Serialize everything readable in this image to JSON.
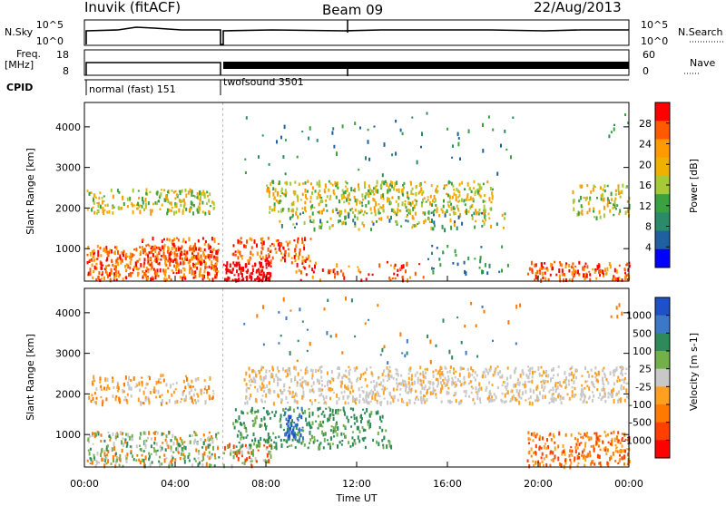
{
  "header": {
    "station": "Inuvik (fitACF)",
    "beam": "Beam 09",
    "date": "22/Aug/2013"
  },
  "panels": {
    "nsky_label": "N.Sky",
    "nsearch_label": "N.Search",
    "nsky_ticks": [
      "10^5",
      "10^0"
    ],
    "nsearch_ticks": [
      "10^5",
      "10^0"
    ],
    "freq_label_1": "Freq.",
    "freq_label_2": "[MHz]",
    "freq_ticks": [
      "18",
      "8"
    ],
    "nave_label": "Nave",
    "nave_ticks": [
      "60",
      "0"
    ],
    "cpid_label": "CPID",
    "cpid_modes": [
      "normal (fast) 151",
      "twofsound 3501"
    ]
  },
  "chart_data": [
    {
      "type": "heatmap",
      "name": "power",
      "ylabel": "Slant Range [km]",
      "y_ticks": [
        "1000",
        "2000",
        "3000",
        "4000"
      ],
      "ylim": [
        200,
        4600
      ],
      "colorbar_label": "Power [dB]",
      "colorbar_ticks": [
        "28",
        "24",
        "20",
        "16",
        "12",
        "8",
        "4"
      ],
      "colorbar_colors": [
        "#ff0000",
        "#ff5a00",
        "#ff9a00",
        "#f0b000",
        "#a6c93a",
        "#3aa040",
        "#2a8a6a",
        "#2060a0",
        "#0000ff"
      ],
      "x_ticks": [
        "00:00",
        "04:00",
        "08:00",
        "12:00",
        "16:00",
        "20:00",
        "00:00"
      ]
    },
    {
      "type": "heatmap",
      "name": "velocity",
      "ylabel": "Slant Range [km]",
      "y_ticks": [
        "1000",
        "2000",
        "3000",
        "4000"
      ],
      "ylim": [
        200,
        4600
      ],
      "colorbar_label": "Velocity [m s-1]",
      "colorbar_ticks": [
        "1000",
        "500",
        "100",
        "25",
        "-25",
        "-100",
        "-500",
        "-1000"
      ],
      "colorbar_colors": [
        "#1e50c8",
        "#3c78c8",
        "#2e8a5a",
        "#74b04a",
        "#c8c8c8",
        "#ffa020",
        "#ff7a00",
        "#ff4000",
        "#ff0000"
      ],
      "x_ticks": [
        "00:00",
        "04:00",
        "08:00",
        "12:00",
        "16:00",
        "20:00",
        "00:00"
      ],
      "xlabel": "Time UT"
    }
  ]
}
